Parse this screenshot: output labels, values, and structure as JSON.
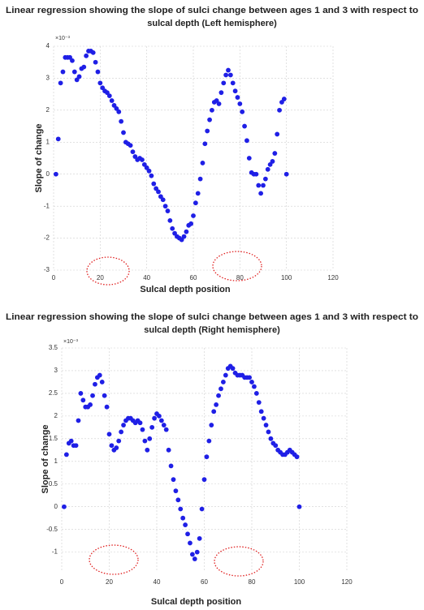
{
  "chart_data": [
    {
      "type": "scatter",
      "title": [
        "Linear regression showing the slope of sulci change between ages 1 and 3 with respect to",
        "sulcal depth (Left hemisphere)"
      ],
      "x_label": "Sulcal depth position",
      "y_label": "Slope of change",
      "y_multiplier": "×10⁻³",
      "color": "#1f1fe6",
      "grid": true,
      "xlim": [
        0,
        120
      ],
      "xticks": [
        0,
        20,
        40,
        60,
        80,
        100,
        120
      ],
      "ylim": [
        -3,
        4
      ],
      "yticks": [
        -3,
        -2,
        -1,
        0,
        1,
        2,
        3,
        4
      ],
      "x": [
        1,
        2,
        3,
        4,
        5,
        6,
        7,
        8,
        9,
        10,
        11,
        12,
        13,
        14,
        15,
        16,
        17,
        18,
        19,
        20,
        21,
        22,
        23,
        24,
        25,
        26,
        27,
        28,
        29,
        30,
        31,
        32,
        33,
        34,
        35,
        36,
        37,
        38,
        39,
        40,
        41,
        42,
        43,
        44,
        45,
        46,
        47,
        48,
        49,
        50,
        51,
        52,
        53,
        54,
        55,
        56,
        57,
        58,
        59,
        60,
        61,
        62,
        63,
        64,
        65,
        66,
        67,
        68,
        69,
        70,
        71,
        72,
        73,
        74,
        75,
        76,
        77,
        78,
        79,
        80,
        81,
        82,
        83,
        84,
        85,
        86,
        87,
        88,
        89,
        90,
        91,
        92,
        93,
        94,
        95,
        96,
        97,
        98,
        99,
        100
      ],
      "values": [
        0,
        1.1,
        2.85,
        3.2,
        3.65,
        3.65,
        3.65,
        3.55,
        3.2,
        2.95,
        3.05,
        3.3,
        3.35,
        3.7,
        3.85,
        3.85,
        3.8,
        3.5,
        3.2,
        2.85,
        2.7,
        2.6,
        2.55,
        2.45,
        2.3,
        2.15,
        2.05,
        1.95,
        1.65,
        1.3,
        1.0,
        0.95,
        0.9,
        0.7,
        0.55,
        0.45,
        0.5,
        0.45,
        0.3,
        0.2,
        0.1,
        -0.05,
        -0.3,
        -0.45,
        -0.55,
        -0.7,
        -0.8,
        -1.0,
        -1.15,
        -1.45,
        -1.7,
        -1.85,
        -1.95,
        -2.0,
        -2.05,
        -1.95,
        -1.8,
        -1.6,
        -1.55,
        -1.3,
        -0.9,
        -0.6,
        -0.15,
        0.35,
        0.95,
        1.35,
        1.7,
        2.0,
        2.25,
        2.3,
        2.2,
        2.55,
        2.85,
        3.1,
        3.25,
        3.1,
        2.85,
        2.6,
        2.4,
        2.2,
        1.95,
        1.5,
        1.05,
        0.5,
        0.05,
        0,
        0,
        -0.35,
        -0.6,
        -0.35,
        -0.15,
        0.15,
        0.3,
        0.4,
        0.65,
        1.25,
        2.0,
        2.25,
        2.35,
        0
      ]
    },
    {
      "type": "scatter",
      "title": [
        "Linear regression showing the slope of sulci change between ages 1 and 3 with respect to",
        "sulcal depth (Right hemisphere)"
      ],
      "x_label": "Sulcal depth position",
      "y_label": "Slope of change",
      "y_multiplier": "×10⁻³",
      "color": "#1f1fe6",
      "grid": true,
      "xlim": [
        0,
        120
      ],
      "xticks": [
        0,
        20,
        40,
        60,
        80,
        100,
        120
      ],
      "ylim": [
        -1.4,
        3.5
      ],
      "yticks": [
        -1,
        -0.5,
        0,
        0.5,
        1,
        1.5,
        2,
        2.5,
        3,
        3.5
      ],
      "x": [
        1,
        2,
        3,
        4,
        5,
        6,
        7,
        8,
        9,
        10,
        11,
        12,
        13,
        14,
        15,
        16,
        17,
        18,
        19,
        20,
        21,
        22,
        23,
        24,
        25,
        26,
        27,
        28,
        29,
        30,
        31,
        32,
        33,
        34,
        35,
        36,
        37,
        38,
        39,
        40,
        41,
        42,
        43,
        44,
        45,
        46,
        47,
        48,
        49,
        50,
        51,
        52,
        53,
        54,
        55,
        56,
        57,
        58,
        59,
        60,
        61,
        62,
        63,
        64,
        65,
        66,
        67,
        68,
        69,
        70,
        71,
        72,
        73,
        74,
        75,
        76,
        77,
        78,
        79,
        80,
        81,
        82,
        83,
        84,
        85,
        86,
        87,
        88,
        89,
        90,
        91,
        92,
        93,
        94,
        95,
        96,
        97,
        98,
        99,
        100
      ],
      "values": [
        0,
        1.15,
        1.4,
        1.45,
        1.35,
        1.35,
        1.9,
        2.5,
        2.35,
        2.2,
        2.2,
        2.25,
        2.45,
        2.7,
        2.85,
        2.9,
        2.75,
        2.45,
        2.2,
        1.6,
        1.35,
        1.25,
        1.3,
        1.45,
        1.65,
        1.8,
        1.9,
        1.95,
        1.95,
        1.9,
        1.85,
        1.9,
        1.85,
        1.7,
        1.45,
        1.25,
        1.5,
        1.75,
        1.95,
        2.05,
        2.0,
        1.9,
        1.8,
        1.7,
        1.25,
        0.9,
        0.6,
        0.35,
        0.15,
        -0.05,
        -0.25,
        -0.4,
        -0.6,
        -0.8,
        -1.05,
        -1.15,
        -1.0,
        -0.7,
        -0.05,
        0.6,
        1.1,
        1.45,
        1.8,
        2.1,
        2.25,
        2.45,
        2.6,
        2.75,
        2.9,
        3.05,
        3.1,
        3.05,
        2.95,
        2.9,
        2.9,
        2.9,
        2.85,
        2.85,
        2.85,
        2.75,
        2.65,
        2.5,
        2.3,
        2.1,
        1.95,
        1.8,
        1.65,
        1.5,
        1.4,
        1.35,
        1.25,
        1.2,
        1.15,
        1.15,
        1.2,
        1.25,
        1.2,
        1.15,
        1.1,
        0
      ]
    }
  ]
}
